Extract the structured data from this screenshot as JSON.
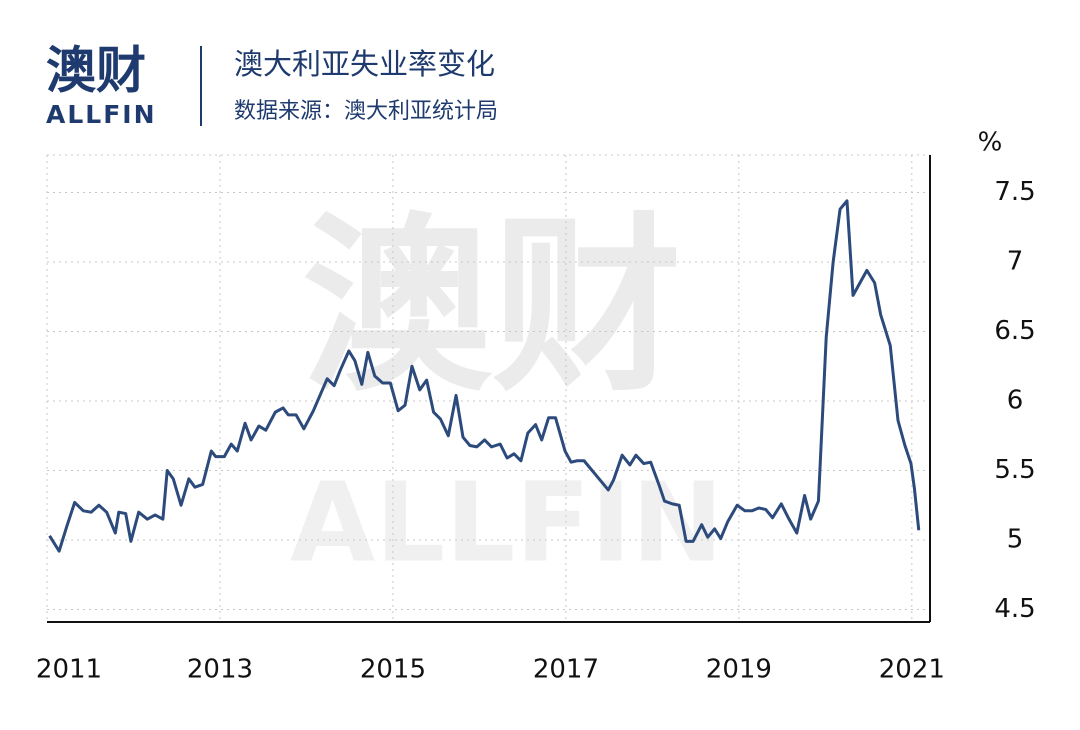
{
  "logo": {
    "name": "澳财",
    "subname": "ALLFIN"
  },
  "watermark": {
    "name": "澳财",
    "subname": "ALLFIN"
  },
  "chart_data": {
    "type": "line",
    "title": "澳大利亚失业率变化",
    "subtitle": "数据来源：澳大利亚统计局",
    "y_label": "%",
    "color": "#2c4a7c",
    "grid": true,
    "grid_style": "dotted",
    "xlim": [
      2011.0,
      2021.21
    ],
    "xticks": [
      2011,
      2013,
      2015,
      2017,
      2019,
      2021
    ],
    "ylim": [
      4.41,
      7.77
    ],
    "yticks": [
      4.5,
      5.0,
      5.5,
      6.0,
      6.5,
      7.0,
      7.5
    ],
    "x": [
      2011.03,
      2011.14,
      2011.23,
      2011.32,
      2011.42,
      2011.51,
      2011.6,
      2011.69,
      2011.79,
      2011.83,
      2011.91,
      2011.97,
      2012.06,
      2012.16,
      2012.25,
      2012.34,
      2012.39,
      2012.46,
      2012.55,
      2012.64,
      2012.71,
      2012.8,
      2012.9,
      2012.95,
      2013.05,
      2013.13,
      2013.2,
      2013.29,
      2013.36,
      2013.45,
      2013.53,
      2013.64,
      2013.73,
      2013.79,
      2013.88,
      2013.97,
      2014.08,
      2014.17,
      2014.24,
      2014.32,
      2014.39,
      2014.49,
      2014.56,
      2014.64,
      2014.71,
      2014.79,
      2014.88,
      2014.97,
      2015.06,
      2015.14,
      2015.22,
      2015.31,
      2015.39,
      2015.47,
      2015.55,
      2015.64,
      2015.73,
      2015.81,
      2015.89,
      2015.97,
      2016.06,
      2016.14,
      2016.24,
      2016.32,
      2016.4,
      2016.48,
      2016.56,
      2016.65,
      2016.72,
      2016.8,
      2016.88,
      2016.99,
      2017.06,
      2017.13,
      2017.21,
      2017.29,
      2017.37,
      2017.49,
      2017.55,
      2017.65,
      2017.74,
      2017.81,
      2017.9,
      2017.98,
      2018.08,
      2018.14,
      2018.23,
      2018.31,
      2018.39,
      2018.47,
      2018.57,
      2018.64,
      2018.72,
      2018.79,
      2018.87,
      2018.98,
      2019.07,
      2019.15,
      2019.23,
      2019.31,
      2019.39,
      2019.49,
      2019.58,
      2019.67,
      2019.76,
      2019.83,
      2019.92,
      2020.01,
      2020.09,
      2020.17,
      2020.25,
      2020.32,
      2020.4,
      2020.48,
      2020.57,
      2020.64,
      2020.75,
      2020.84,
      2020.92,
      2020.99,
      2021.03,
      2021.08
    ],
    "values": [
      5.03,
      4.92,
      5.1,
      5.27,
      5.21,
      5.2,
      5.25,
      5.2,
      5.05,
      5.2,
      5.19,
      4.99,
      5.2,
      5.15,
      5.18,
      5.15,
      5.5,
      5.44,
      5.25,
      5.44,
      5.38,
      5.4,
      5.64,
      5.6,
      5.6,
      5.69,
      5.64,
      5.84,
      5.72,
      5.82,
      5.79,
      5.92,
      5.95,
      5.9,
      5.9,
      5.8,
      5.93,
      6.06,
      6.16,
      6.11,
      6.22,
      6.36,
      6.29,
      6.12,
      6.35,
      6.18,
      6.13,
      6.13,
      5.93,
      5.97,
      6.25,
      6.08,
      6.15,
      5.92,
      5.87,
      5.75,
      6.04,
      5.74,
      5.68,
      5.67,
      5.72,
      5.67,
      5.69,
      5.59,
      5.62,
      5.57,
      5.77,
      5.83,
      5.72,
      5.88,
      5.88,
      5.64,
      5.56,
      5.57,
      5.57,
      5.51,
      5.45,
      5.36,
      5.43,
      5.61,
      5.54,
      5.61,
      5.55,
      5.56,
      5.39,
      5.28,
      5.26,
      5.25,
      4.99,
      4.99,
      5.11,
      5.02,
      5.08,
      5.01,
      5.13,
      5.25,
      5.21,
      5.21,
      5.23,
      5.22,
      5.16,
      5.26,
      5.15,
      5.05,
      5.32,
      5.15,
      5.28,
      6.46,
      7.0,
      7.38,
      7.44,
      6.76,
      6.85,
      6.94,
      6.85,
      6.62,
      6.4,
      5.86,
      5.68,
      5.55,
      5.37,
      5.07
    ]
  }
}
